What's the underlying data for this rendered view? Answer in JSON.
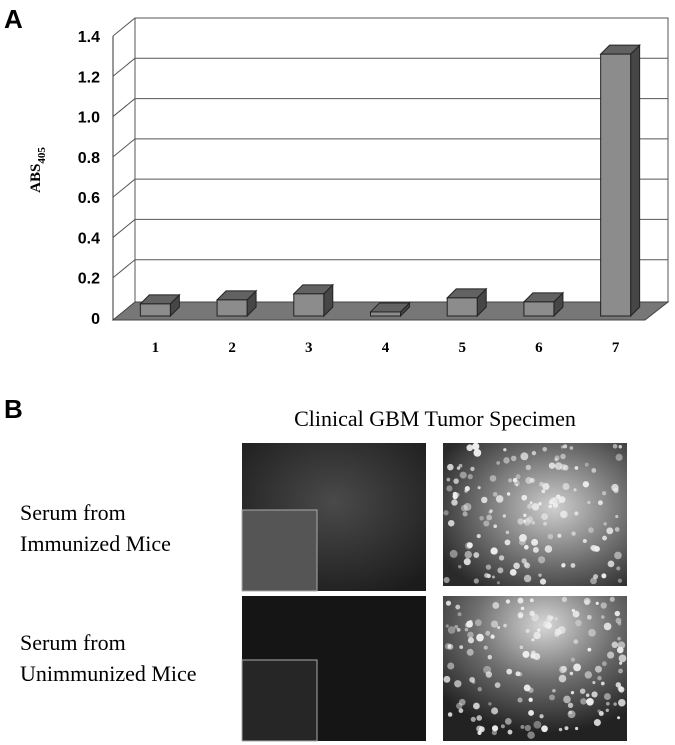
{
  "panel_labels": [
    "A",
    "B"
  ],
  "chart_data": {
    "type": "bar",
    "y_label": {
      "text": "ABS",
      "subscript": "405"
    },
    "categories": [
      "1",
      "2",
      "3",
      "4",
      "5",
      "6",
      "7"
    ],
    "values": [
      0.07,
      0.09,
      0.12,
      0.03,
      0.1,
      0.08,
      1.31
    ],
    "color": "#8c8c8c",
    "ylim": [
      0,
      1.4
    ],
    "yticks": [
      0,
      0.2,
      0.4,
      0.6,
      0.8,
      {
        "value": 1,
        "label": "1.0"
      },
      1.2,
      1.4
    ],
    "grid": true
  },
  "panel_b": {
    "title": "Clinical GBM Tumor Specimen",
    "row_labels": [
      [
        "Serum from",
        "Immunized Mice"
      ],
      [
        "Serum from",
        "Unimmunized Mice"
      ]
    ]
  }
}
